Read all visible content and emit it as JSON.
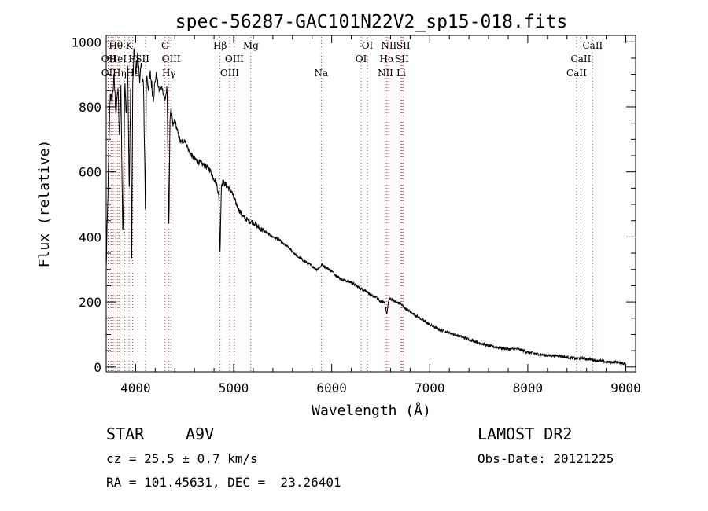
{
  "chart_data": {
    "type": "line",
    "title": "spec-56287-GAC101N22V2_sp15-018.fits",
    "xlabel": "Wavelength (Å)",
    "ylabel": "Flux (relative)",
    "xlim": [
      3700,
      9100
    ],
    "ylim": [
      -15,
      1020
    ],
    "xticks": [
      4000,
      5000,
      6000,
      7000,
      8000,
      9000
    ],
    "xtick_labels": [
      "4000",
      "5000",
      "6000",
      "7000",
      "8000",
      "9000"
    ],
    "yticks": [
      0,
      200,
      400,
      600,
      800,
      1000
    ],
    "ytick_labels": [
      "0",
      "200",
      "400",
      "600",
      "800",
      "1000"
    ],
    "grid": false,
    "series": [
      {
        "x": [
          3700,
          3720,
          3740,
          3760,
          3780,
          3800,
          3820,
          3835,
          3850,
          3870,
          3890,
          3905,
          3920,
          3935,
          3950,
          3960,
          3970,
          3985,
          4000,
          4020,
          4040,
          4060,
          4080,
          4100,
          4110,
          4130,
          4150,
          4180,
          4210,
          4240,
          4270,
          4300,
          4320,
          4340,
          4350,
          4360,
          4380,
          4400,
          4430,
          4460,
          4500,
          4550,
          4600,
          4650,
          4700,
          4750,
          4800,
          4830,
          4850,
          4861,
          4875,
          4890,
          4920,
          4950,
          4980,
          5000,
          5030,
          5060,
          5100,
          5150,
          5200,
          5250,
          5300,
          5350,
          5400,
          5450,
          5500,
          5550,
          5600,
          5650,
          5700,
          5750,
          5800,
          5850,
          5890,
          5900,
          5950,
          6000,
          6050,
          6100,
          6150,
          6200,
          6250,
          6300,
          6350,
          6400,
          6450,
          6500,
          6540,
          6563,
          6580,
          6600,
          6650,
          6700,
          6750,
          6800,
          6850,
          6900,
          6950,
          7000,
          7100,
          7200,
          7300,
          7400,
          7500,
          7600,
          7700,
          7800,
          7900,
          8000,
          8100,
          8200,
          8300,
          8400,
          8450,
          8498,
          8542,
          8600,
          8662,
          8700,
          8750,
          8800,
          8850,
          8900,
          8950,
          9000
        ],
        "values": [
          300,
          560,
          840,
          820,
          890,
          780,
          860,
          700,
          860,
          380,
          900,
          760,
          930,
          520,
          880,
          270,
          860,
          980,
          900,
          960,
          890,
          920,
          870,
          480,
          900,
          860,
          900,
          830,
          900,
          850,
          860,
          820,
          860,
          420,
          760,
          800,
          740,
          760,
          720,
          690,
          700,
          660,
          640,
          630,
          620,
          610,
          580,
          560,
          520,
          350,
          560,
          570,
          560,
          550,
          540,
          520,
          500,
          480,
          460,
          450,
          445,
          430,
          420,
          410,
          400,
          395,
          380,
          370,
          355,
          340,
          330,
          320,
          310,
          300,
          310,
          315,
          305,
          295,
          280,
          270,
          265,
          260,
          250,
          240,
          235,
          220,
          215,
          200,
          200,
          160,
          205,
          210,
          200,
          195,
          180,
          170,
          160,
          150,
          140,
          130,
          115,
          105,
          95,
          85,
          75,
          65,
          60,
          55,
          55,
          45,
          40,
          35,
          35,
          30,
          28,
          25,
          28,
          25,
          22,
          20,
          18,
          15,
          15,
          15,
          12,
          10
        ]
      }
    ],
    "lines": {
      "positions": [
        3720,
        3750,
        3772,
        3798,
        3820,
        3835,
        3889,
        3934,
        3970,
        4026,
        4102,
        4300,
        4340,
        4363,
        4861,
        4959,
        5007,
        5175,
        5893,
        6300,
        6364,
        6548,
        6563,
        6583,
        6708,
        6717,
        6731,
        8498,
        8542,
        8662
      ],
      "labels": [
        {
          "text": "Hθ",
          "x": 3798,
          "row": 1
        },
        {
          "text": "K",
          "x": 3934,
          "row": 1
        },
        {
          "text": "OII",
          "x": 3727,
          "row": 2
        },
        {
          "text": "HeI",
          "x": 3820,
          "row": 2
        },
        {
          "text": "H",
          "x": 3970,
          "row": 2
        },
        {
          "text": "SII",
          "x": 4070,
          "row": 2
        },
        {
          "text": "OII",
          "x": 3727,
          "row": 3
        },
        {
          "text": "Hη",
          "x": 3835,
          "row": 3
        },
        {
          "text": "Hε",
          "x": 3970,
          "row": 3
        },
        {
          "text": "G",
          "x": 4300,
          "row": 1
        },
        {
          "text": "OIII",
          "x": 4363,
          "row": 2
        },
        {
          "text": "Hγ",
          "x": 4340,
          "row": 3
        },
        {
          "text": "Hβ",
          "x": 4861,
          "row": 1
        },
        {
          "text": "Mg",
          "x": 5175,
          "row": 1
        },
        {
          "text": "OIII",
          "x": 5007,
          "row": 2
        },
        {
          "text": "OIII",
          "x": 4959,
          "row": 3
        },
        {
          "text": "Na",
          "x": 5893,
          "row": 3
        },
        {
          "text": "OI",
          "x": 6364,
          "row": 1
        },
        {
          "text": "OI",
          "x": 6300,
          "row": 2
        },
        {
          "text": "NII",
          "x": 6583,
          "row": 1
        },
        {
          "text": "SII",
          "x": 6731,
          "row": 1
        },
        {
          "text": "Hα",
          "x": 6563,
          "row": 2
        },
        {
          "text": "SII",
          "x": 6717,
          "row": 2
        },
        {
          "text": "NII",
          "x": 6548,
          "row": 3
        },
        {
          "text": "Li",
          "x": 6708,
          "row": 3
        },
        {
          "text": "CaII",
          "x": 8662,
          "row": 1
        },
        {
          "text": "CaII",
          "x": 8542,
          "row": 2
        },
        {
          "text": "CaII",
          "x": 8498,
          "row": 3
        }
      ]
    }
  },
  "info": {
    "object_class": "STAR",
    "subclass": "A9V",
    "survey": "LAMOST DR2",
    "redshift_text": "cz = 25.5 ± 0.7 km/s",
    "obs_date_text": "Obs-Date: 20121225",
    "coords_text": "RA = 101.45631, DEC =  23.26401"
  }
}
